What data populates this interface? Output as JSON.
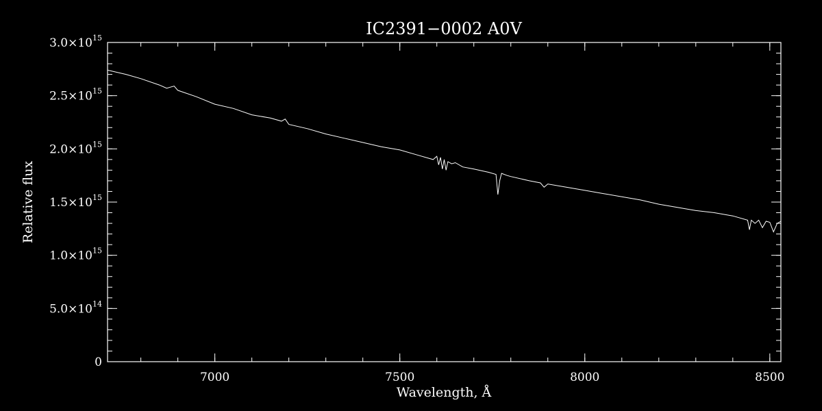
{
  "chart_data": {
    "type": "line",
    "title": "IC2391−0002  A0V",
    "xlabel": "Wavelength, Å",
    "ylabel": "Relative flux",
    "xlim": [
      6710,
      8530
    ],
    "ylim": [
      0,
      3000000000000000.0
    ],
    "grid": false,
    "x_ticks": [
      {
        "value": 7000,
        "label": "7000"
      },
      {
        "value": 7500,
        "label": "7500"
      },
      {
        "value": 8000,
        "label": "8000"
      },
      {
        "value": 8500,
        "label": "8500"
      }
    ],
    "y_ticks": [
      {
        "value": 0,
        "mant": "0",
        "exp": ""
      },
      {
        "value": 500000000000000.0,
        "mant": "5.0×10",
        "exp": "14"
      },
      {
        "value": 1000000000000000.0,
        "mant": "1.0×10",
        "exp": "15"
      },
      {
        "value": 1500000000000000.0,
        "mant": "1.5×10",
        "exp": "15"
      },
      {
        "value": 2000000000000000.0,
        "mant": "2.0×10",
        "exp": "15"
      },
      {
        "value": 2500000000000000.0,
        "mant": "2.5×10",
        "exp": "15"
      },
      {
        "value": 3000000000000000.0,
        "mant": "3.0×10",
        "exp": "15"
      }
    ],
    "series": [
      {
        "x": [
          6710,
          6760,
          6800,
          6850,
          6870,
          6880,
          6890,
          6900,
          6950,
          7000,
          7050,
          7100,
          7150,
          7180,
          7190,
          7200,
          7250,
          7300,
          7350,
          7400,
          7450,
          7500,
          7550,
          7590,
          7600,
          7605,
          7610,
          7615,
          7620,
          7625,
          7630,
          7640,
          7650,
          7670,
          7700,
          7740,
          7760,
          7765,
          7770,
          7775,
          7790,
          7800,
          7850,
          7880,
          7890,
          7900,
          7950,
          8000,
          8050,
          8100,
          8150,
          8200,
          8250,
          8300,
          8350,
          8400,
          8440,
          8445,
          8450,
          8460,
          8470,
          8480,
          8490,
          8500,
          8510,
          8520,
          8530
        ],
        "y": [
          2740000000000000.0,
          2700000000000000.0,
          2660000000000000.0,
          2600000000000000.0,
          2570000000000000.0,
          2580000000000000.0,
          2590000000000000.0,
          2550000000000000.0,
          2490000000000000.0,
          2420000000000000.0,
          2380000000000000.0,
          2320000000000000.0,
          2290000000000000.0,
          2260000000000000.0,
          2280000000000000.0,
          2230000000000000.0,
          2190000000000000.0,
          2140000000000000.0,
          2100000000000000.0,
          2060000000000000.0,
          2020000000000000.0,
          1990000000000000.0,
          1940000000000000.0,
          1900000000000000.0,
          1930000000000000.0,
          1850000000000000.0,
          1920000000000000.0,
          1810000000000000.0,
          1900000000000000.0,
          1800000000000000.0,
          1880000000000000.0,
          1860000000000000.0,
          1870000000000000.0,
          1830000000000000.0,
          1810000000000000.0,
          1780000000000000.0,
          1760000000000000.0,
          1570000000000000.0,
          1700000000000000.0,
          1770000000000000.0,
          1750000000000000.0,
          1740000000000000.0,
          1700000000000000.0,
          1680000000000000.0,
          1640000000000000.0,
          1670000000000000.0,
          1640000000000000.0,
          1610000000000000.0,
          1580000000000000.0,
          1550000000000000.0,
          1520000000000000.0,
          1480000000000000.0,
          1450000000000000.0,
          1420000000000000.0,
          1400000000000000.0,
          1370000000000000.0,
          1330000000000000.0,
          1240000000000000.0,
          1330000000000000.0,
          1300000000000000.0,
          1330000000000000.0,
          1260000000000000.0,
          1320000000000000.0,
          1310000000000000.0,
          1220000000000000.0,
          1300000000000000.0,
          1320000000000000.0
        ]
      }
    ]
  }
}
